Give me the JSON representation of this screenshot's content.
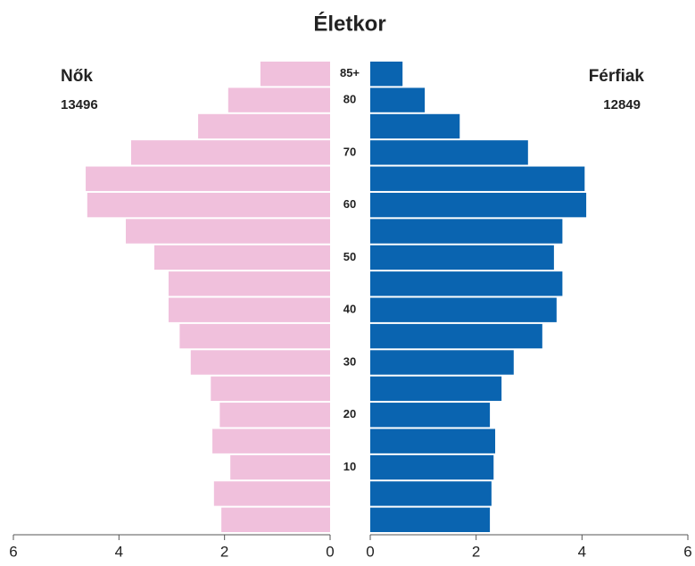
{
  "chart_data": {
    "type": "pyramid",
    "title": "Életkor",
    "categories": [
      null,
      null,
      "10",
      null,
      "20",
      null,
      "30",
      null,
      "40",
      null,
      "50",
      null,
      "60",
      null,
      "70",
      null,
      "80",
      "85+"
    ],
    "series": [
      {
        "name": "Nők",
        "total": 13496,
        "color": "#f0c0dc",
        "side": "left",
        "values": [
          2.06,
          2.2,
          1.89,
          2.23,
          2.09,
          2.26,
          2.64,
          2.85,
          3.06,
          3.06,
          3.33,
          3.87,
          4.6,
          4.63,
          3.77,
          2.5,
          1.93,
          1.32
        ]
      },
      {
        "name": "Férfiak",
        "total": 12849,
        "color": "#0a64b0",
        "side": "right",
        "values": [
          2.26,
          2.29,
          2.33,
          2.36,
          2.26,
          2.48,
          2.71,
          3.25,
          3.52,
          3.63,
          3.47,
          3.63,
          4.08,
          4.05,
          2.98,
          1.69,
          1.03,
          0.61
        ]
      }
    ],
    "xlim": [
      0,
      6
    ],
    "xticks": [
      0,
      2,
      4,
      6
    ]
  }
}
